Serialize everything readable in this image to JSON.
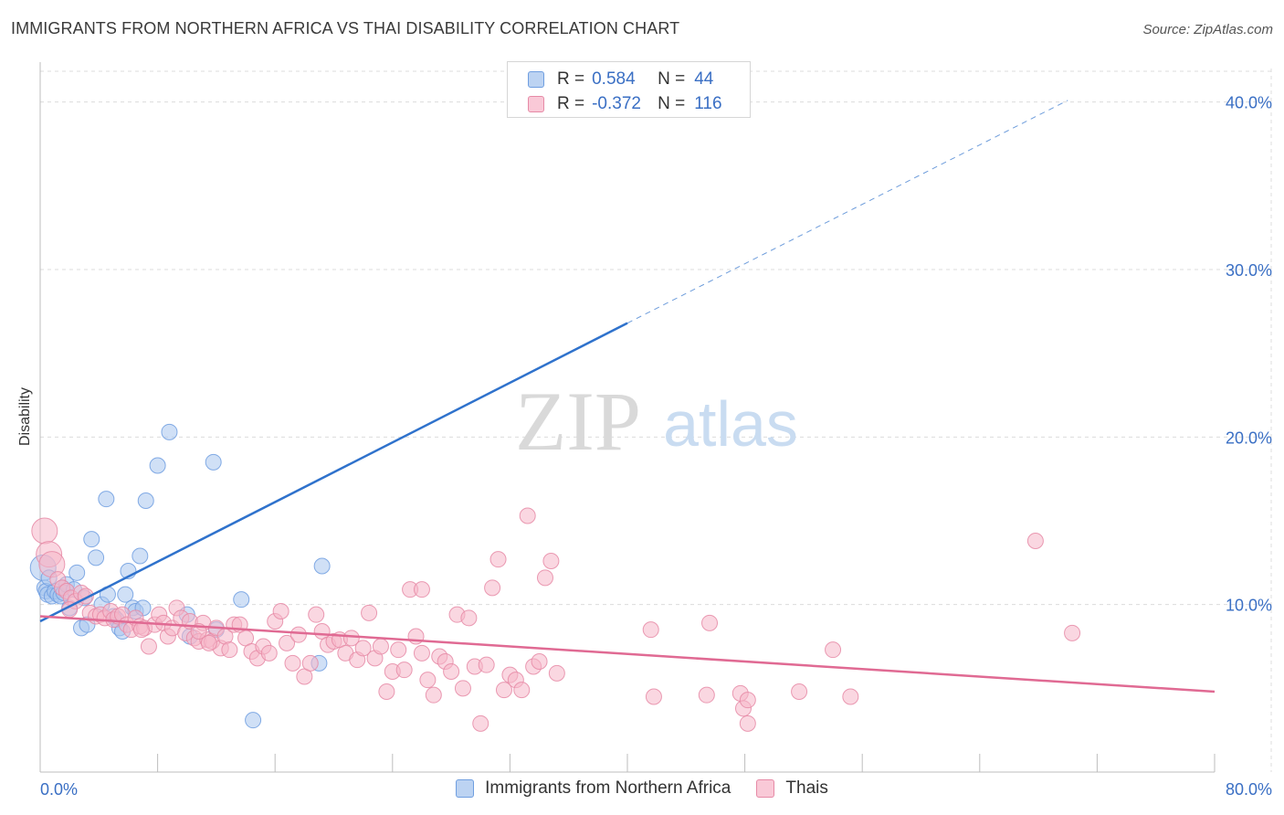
{
  "header": {
    "title": "IMMIGRANTS FROM NORTHERN AFRICA VS THAI DISABILITY CORRELATION CHART",
    "source": "Source: ZipAtlas.com"
  },
  "watermark": {
    "zip": "ZIP",
    "atlas": "atlas"
  },
  "legend": {
    "rows": [
      {
        "r_label": "R =",
        "r_value": "0.584",
        "n_label": "N =",
        "n_value": "44"
      },
      {
        "r_label": "R =",
        "r_value": "-0.372",
        "n_label": "N =",
        "n_value": "116"
      }
    ]
  },
  "bottom_legend": {
    "series1": "Immigrants from Northern Africa",
    "series2": "Thais"
  },
  "colors": {
    "blue_fill": "#a9c6ee",
    "blue_stroke": "#6f9ee0",
    "blue_line": "#2f72cc",
    "pink_fill": "#f5b6c9",
    "pink_stroke": "#e68aa6",
    "pink_line": "#e06a93",
    "tick_text": "#3a6fc4",
    "grid": "#dcdcdc"
  },
  "chart_data": {
    "type": "scatter",
    "title": "IMMIGRANTS FROM NORTHERN AFRICA VS THAI DISABILITY CORRELATION CHART",
    "xlabel": "",
    "ylabel": "Disability",
    "xlim": [
      0,
      80
    ],
    "ylim": [
      0,
      42
    ],
    "x_tick_labels": [
      "0.0%",
      "80.0%"
    ],
    "y_ticks": [
      10,
      20,
      30,
      40
    ],
    "y_tick_labels": [
      "10.0%",
      "20.0%",
      "30.0%",
      "40.0%"
    ],
    "grid": true,
    "legend_position": "top-center",
    "series": [
      {
        "name": "Immigrants from Northern Africa",
        "points": [
          [
            0.2,
            12.2
          ],
          [
            0.3,
            11.0
          ],
          [
            0.4,
            10.8
          ],
          [
            0.5,
            10.6
          ],
          [
            0.8,
            10.5
          ],
          [
            1.0,
            10.8
          ],
          [
            1.2,
            10.6
          ],
          [
            1.4,
            10.5
          ],
          [
            1.5,
            11.0
          ],
          [
            1.6,
            10.7
          ],
          [
            1.8,
            11.2
          ],
          [
            2.0,
            9.8
          ],
          [
            2.3,
            10.9
          ],
          [
            2.5,
            11.9
          ],
          [
            2.8,
            8.6
          ],
          [
            3.0,
            10.4
          ],
          [
            3.2,
            8.8
          ],
          [
            3.5,
            13.9
          ],
          [
            3.8,
            12.8
          ],
          [
            4.2,
            10.0
          ],
          [
            4.5,
            16.3
          ],
          [
            4.6,
            10.6
          ],
          [
            5.0,
            9.3
          ],
          [
            5.2,
            9.1
          ],
          [
            5.4,
            8.6
          ],
          [
            5.6,
            8.4
          ],
          [
            5.8,
            10.6
          ],
          [
            6.0,
            12.0
          ],
          [
            6.3,
            9.8
          ],
          [
            6.5,
            9.6
          ],
          [
            6.8,
            12.9
          ],
          [
            7.0,
            9.8
          ],
          [
            7.2,
            16.2
          ],
          [
            8.0,
            18.3
          ],
          [
            8.8,
            20.3
          ],
          [
            10.0,
            9.4
          ],
          [
            10.2,
            8.1
          ],
          [
            11.8,
            18.5
          ],
          [
            12.0,
            8.5
          ],
          [
            13.7,
            10.3
          ],
          [
            14.5,
            3.1
          ],
          [
            19.2,
            12.3
          ],
          [
            19.0,
            6.5
          ],
          [
            0.6,
            11.6
          ]
        ],
        "trend": {
          "x1": 0.0,
          "y1": 9.0,
          "x2": 40.0,
          "y2": 26.8,
          "dash_x2": 70.0,
          "dash_y2": 40.1
        }
      },
      {
        "name": "Thais",
        "points": [
          [
            0.3,
            14.4
          ],
          [
            0.6,
            13.0
          ],
          [
            0.8,
            12.4
          ],
          [
            1.2,
            11.5
          ],
          [
            1.5,
            11.0
          ],
          [
            1.8,
            10.8
          ],
          [
            2.1,
            10.4
          ],
          [
            2.4,
            10.2
          ],
          [
            2.8,
            10.7
          ],
          [
            3.1,
            10.5
          ],
          [
            3.4,
            9.5
          ],
          [
            3.8,
            9.3
          ],
          [
            4.1,
            9.4
          ],
          [
            4.4,
            9.2
          ],
          [
            4.8,
            9.6
          ],
          [
            5.0,
            9.1
          ],
          [
            5.3,
            9.3
          ],
          [
            5.6,
            9.4
          ],
          [
            5.9,
            8.8
          ],
          [
            6.2,
            8.5
          ],
          [
            6.5,
            9.2
          ],
          [
            6.8,
            8.7
          ],
          [
            7.1,
            8.6
          ],
          [
            7.4,
            7.5
          ],
          [
            7.8,
            8.8
          ],
          [
            8.1,
            9.4
          ],
          [
            8.4,
            8.9
          ],
          [
            8.7,
            8.1
          ],
          [
            9.0,
            8.6
          ],
          [
            9.3,
            9.8
          ],
          [
            9.6,
            9.2
          ],
          [
            9.9,
            8.3
          ],
          [
            10.2,
            9.0
          ],
          [
            10.5,
            8.0
          ],
          [
            10.8,
            7.8
          ],
          [
            11.1,
            8.9
          ],
          [
            11.4,
            7.9
          ],
          [
            11.7,
            7.8
          ],
          [
            12.0,
            8.6
          ],
          [
            12.3,
            7.4
          ],
          [
            12.6,
            8.1
          ],
          [
            12.9,
            7.3
          ],
          [
            13.2,
            8.8
          ],
          [
            13.6,
            8.8
          ],
          [
            14.0,
            8.0
          ],
          [
            14.4,
            7.2
          ],
          [
            14.8,
            6.8
          ],
          [
            15.2,
            7.5
          ],
          [
            15.6,
            7.1
          ],
          [
            16.0,
            9.0
          ],
          [
            16.4,
            9.6
          ],
          [
            16.8,
            7.7
          ],
          [
            17.2,
            6.5
          ],
          [
            17.6,
            8.2
          ],
          [
            18.0,
            5.7
          ],
          [
            18.4,
            6.5
          ],
          [
            18.8,
            9.4
          ],
          [
            19.2,
            8.4
          ],
          [
            19.6,
            7.6
          ],
          [
            20.0,
            7.8
          ],
          [
            20.4,
            7.9
          ],
          [
            20.8,
            7.1
          ],
          [
            21.2,
            8.0
          ],
          [
            21.6,
            6.7
          ],
          [
            22.0,
            7.4
          ],
          [
            22.4,
            9.5
          ],
          [
            22.8,
            6.8
          ],
          [
            23.2,
            7.5
          ],
          [
            23.6,
            4.8
          ],
          [
            24.0,
            6.0
          ],
          [
            24.4,
            7.3
          ],
          [
            24.8,
            6.1
          ],
          [
            25.2,
            10.9
          ],
          [
            25.6,
            8.1
          ],
          [
            26.0,
            7.1
          ],
          [
            26.4,
            5.5
          ],
          [
            26.8,
            4.6
          ],
          [
            27.2,
            6.9
          ],
          [
            27.6,
            6.6
          ],
          [
            28.0,
            6.0
          ],
          [
            28.4,
            9.4
          ],
          [
            28.8,
            5.0
          ],
          [
            29.2,
            9.2
          ],
          [
            29.6,
            6.3
          ],
          [
            30.0,
            2.9
          ],
          [
            30.4,
            6.4
          ],
          [
            30.8,
            11.0
          ],
          [
            31.2,
            12.7
          ],
          [
            31.6,
            4.9
          ],
          [
            32.0,
            5.8
          ],
          [
            32.4,
            5.5
          ],
          [
            32.8,
            4.9
          ],
          [
            33.2,
            15.3
          ],
          [
            33.6,
            6.3
          ],
          [
            34.0,
            6.6
          ],
          [
            34.4,
            11.6
          ],
          [
            34.8,
            12.6
          ],
          [
            35.2,
            5.9
          ],
          [
            41.6,
            8.5
          ],
          [
            41.8,
            4.5
          ],
          [
            45.4,
            4.6
          ],
          [
            45.6,
            8.9
          ],
          [
            47.7,
            4.7
          ],
          [
            47.9,
            3.8
          ],
          [
            48.2,
            2.9
          ],
          [
            48.2,
            4.3
          ],
          [
            51.7,
            4.8
          ],
          [
            54.0,
            7.3
          ],
          [
            55.2,
            4.5
          ],
          [
            67.8,
            13.8
          ],
          [
            70.3,
            8.3
          ],
          [
            10.8,
            8.4
          ],
          [
            2.0,
            9.7
          ],
          [
            6.9,
            8.5
          ],
          [
            11.5,
            7.7
          ],
          [
            26.0,
            10.9
          ]
        ],
        "trend": {
          "x1": 0.0,
          "y1": 9.3,
          "x2": 80.0,
          "y2": 4.8
        }
      }
    ]
  }
}
